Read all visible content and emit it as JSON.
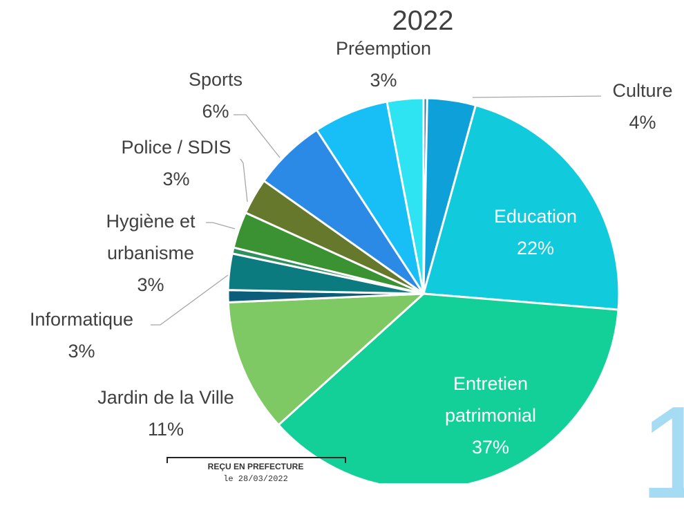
{
  "chart_data": {
    "type": "pie",
    "title": "2022",
    "categories": [
      null,
      "Culture",
      "Education",
      "Entretien patrimonial",
      "Jardin de la Ville",
      null,
      "Informatique",
      null,
      "Hygiène et urbanisme",
      "Police / SDIS",
      "Sports",
      null,
      "Préemption"
    ],
    "values": [
      0.3,
      4,
      22,
      37,
      11,
      1,
      3,
      0.5,
      3,
      3,
      6,
      6.2,
      3
    ],
    "value_labels": [
      null,
      "4%",
      "22%",
      "37%",
      "11%",
      null,
      "3%",
      null,
      "3%",
      "3%",
      "6%",
      null,
      "3%"
    ],
    "colors": [
      "#2a7fb0",
      "#0ea1d9",
      "#11cbdc",
      "#13cf98",
      "#7fc964",
      "#0b5d7a",
      "#0c7b80",
      "#2f8f5e",
      "#3b9233",
      "#66782b",
      "#2b8ae6",
      "#18bff6",
      "#2fe4f2"
    ]
  },
  "stamp": [
    "REÇU EN PREFECTURE",
    "le 28/03/2022"
  ],
  "page_number": "1"
}
